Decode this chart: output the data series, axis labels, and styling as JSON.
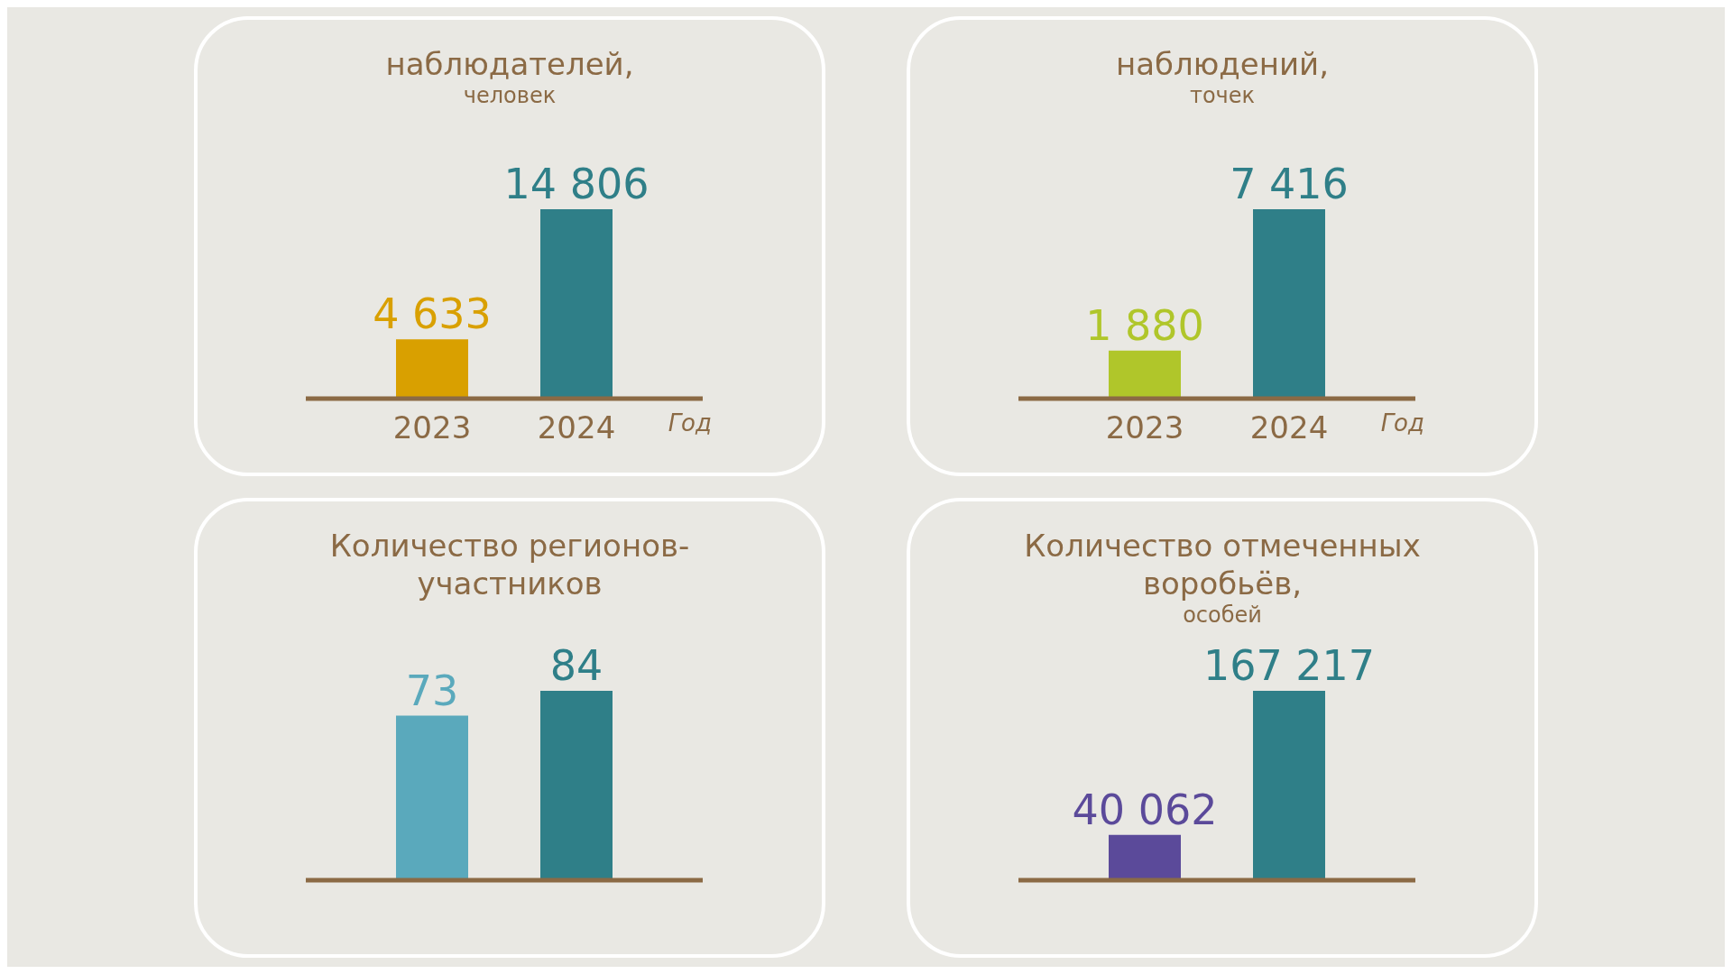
{
  "chart_data": [
    {
      "type": "bar",
      "title": "наблюдателей,",
      "subtitle": "человек",
      "categories": [
        "2023",
        "2024"
      ],
      "values": [
        4633,
        14806
      ],
      "colors": [
        "#d9a000",
        "#2f7f88"
      ],
      "value_labels": [
        "4 633",
        "14 806"
      ],
      "xlabel": "Год"
    },
    {
      "type": "bar",
      "title": "наблюдений,",
      "subtitle": "точек",
      "categories": [
        "2023",
        "2024"
      ],
      "values": [
        1880,
        7416
      ],
      "colors": [
        "#b0c62a",
        "#2f7f88"
      ],
      "value_labels": [
        "1 880",
        "7 416"
      ],
      "xlabel": "Год"
    },
    {
      "type": "bar",
      "title": "Количество регионов-участников",
      "categories": [
        null,
        null
      ],
      "values": [
        73,
        84
      ],
      "colors": [
        "#5aa9bc",
        "#2f7f88"
      ],
      "value_labels": [
        "73",
        "84"
      ]
    },
    {
      "type": "bar",
      "title": "Количество отмеченных воробьёв,",
      "subtitle": "особей",
      "categories": [
        null,
        null
      ],
      "values": [
        40062,
        167217
      ],
      "colors": [
        "#5b4a9a",
        "#2f7f88"
      ],
      "value_labels": [
        "40 062",
        "167 217"
      ]
    }
  ]
}
